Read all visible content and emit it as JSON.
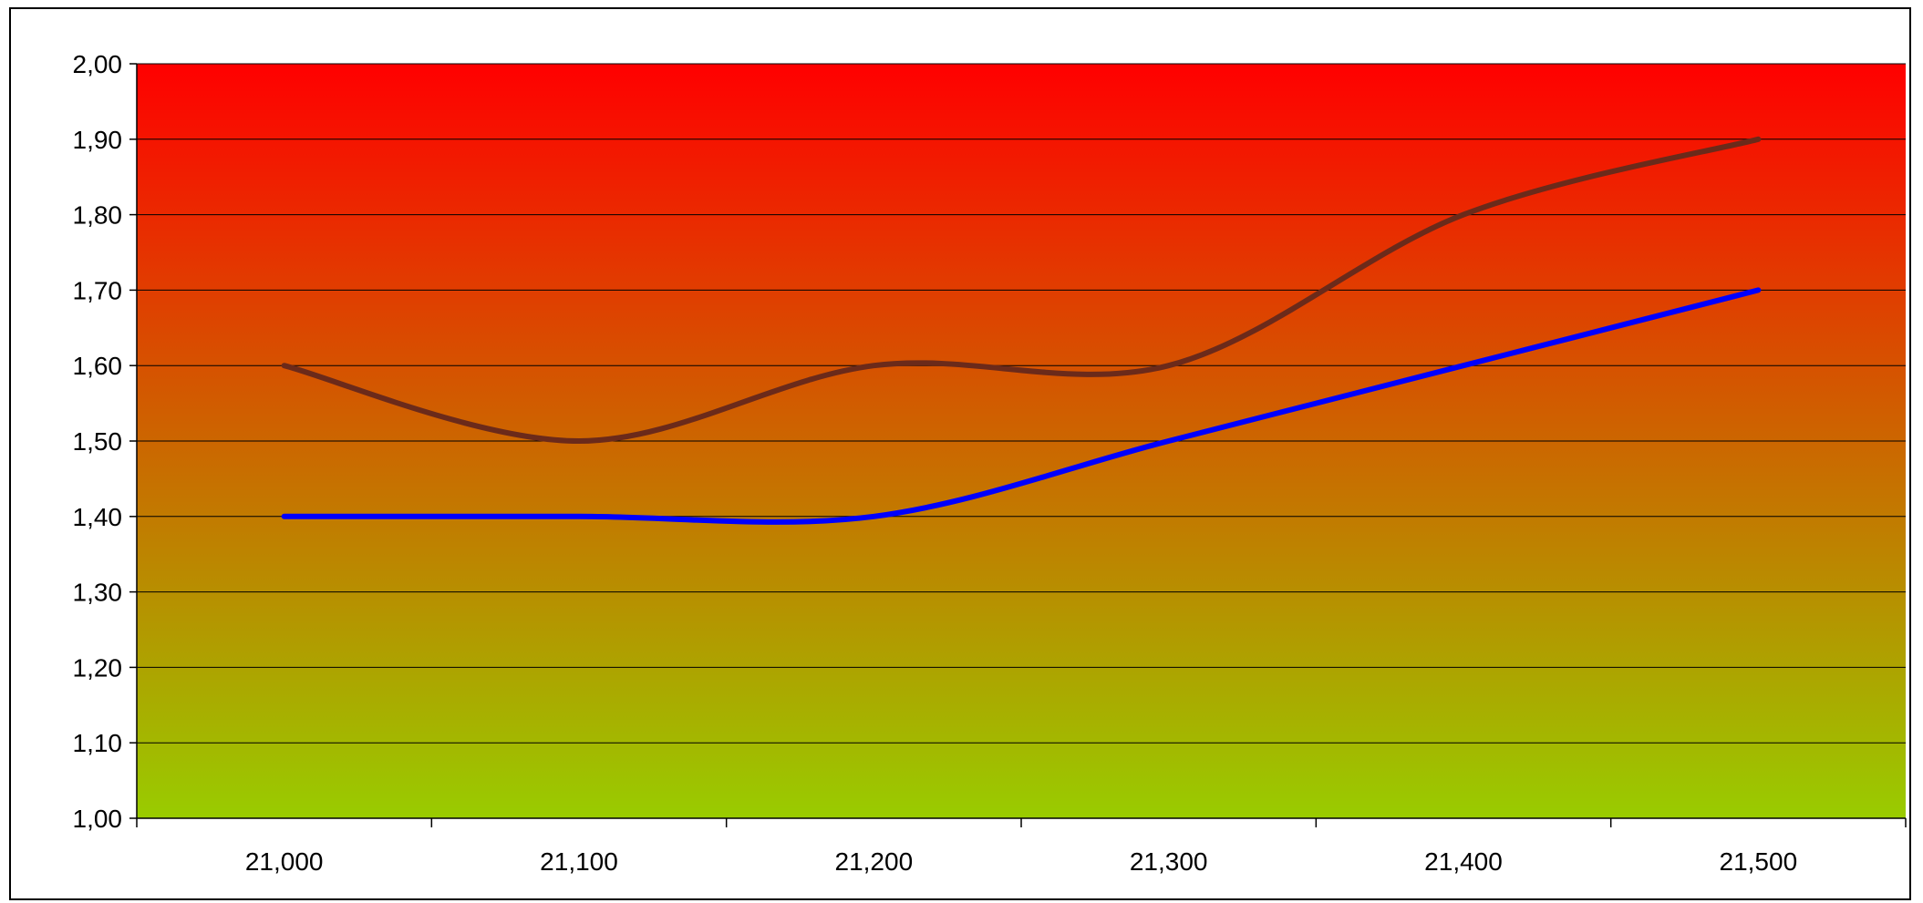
{
  "chart_data": {
    "type": "line",
    "title": "",
    "xlabel": "",
    "ylabel": "",
    "x_categories": [
      "21,000",
      "21,100",
      "21,200",
      "21,300",
      "21,400",
      "21,500"
    ],
    "y_ticks": [
      "1,00",
      "1,10",
      "1,20",
      "1,30",
      "1,40",
      "1,50",
      "1,60",
      "1,70",
      "1,80",
      "1,90",
      "2,00"
    ],
    "ylim": [
      1.0,
      2.0
    ],
    "grid": true,
    "legend": "none",
    "background_gradient": {
      "top": "#ff0000",
      "bottom": "#99cc00"
    },
    "series": [
      {
        "color": "#6b2a1a",
        "values": [
          1.6,
          1.5,
          1.6,
          1.6,
          1.8,
          1.9
        ]
      },
      {
        "color": "#0000ff",
        "values": [
          1.4,
          1.4,
          1.4,
          1.5,
          1.6,
          1.7
        ]
      }
    ]
  }
}
